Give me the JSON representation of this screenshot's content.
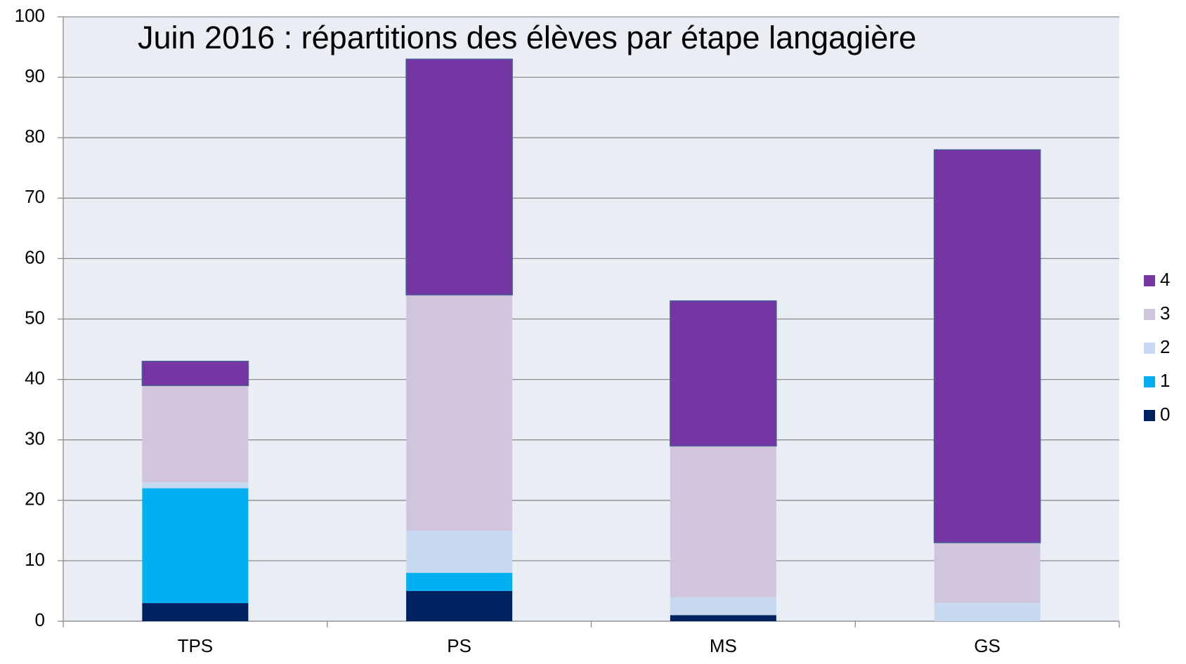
{
  "chart_data": {
    "type": "stacked_bar",
    "title": "Juin 2016 : répartitions des élèves par étape langagière",
    "categories": [
      "TPS",
      "PS",
      "MS",
      "GS"
    ],
    "series": [
      {
        "name": "0",
        "color": "#00215f",
        "values": [
          3,
          5,
          1,
          0
        ]
      },
      {
        "name": "1",
        "color": "#00b0f0",
        "values": [
          19,
          3,
          0,
          0
        ]
      },
      {
        "name": "2",
        "color": "#c6d9f1",
        "values": [
          1,
          7,
          3,
          3
        ]
      },
      {
        "name": "3",
        "color": "#d1c4dd",
        "values": [
          16,
          39,
          25,
          10
        ]
      },
      {
        "name": "4",
        "color": "#7535a3",
        "values": [
          4,
          39,
          24,
          65
        ]
      }
    ],
    "ylim": [
      0,
      100
    ],
    "yticks": [
      0,
      10,
      20,
      30,
      40,
      50,
      60,
      70,
      80,
      90,
      100
    ],
    "grid": true,
    "legend": "right"
  }
}
